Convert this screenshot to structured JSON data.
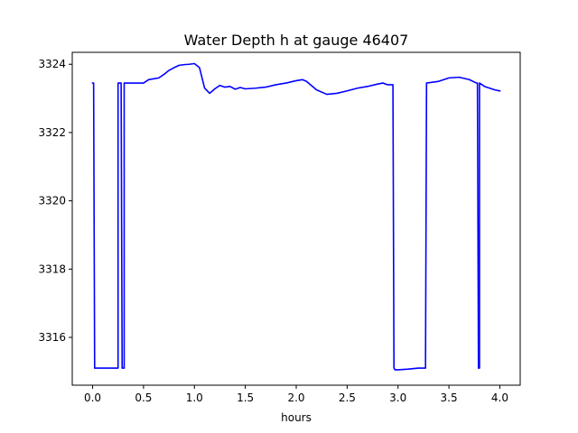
{
  "chart_data": {
    "type": "line",
    "title": "Water Depth h at gauge 46407",
    "xlabel": "hours",
    "ylabel": "",
    "xlim": [
      -0.2,
      4.2
    ],
    "ylim": [
      3314.6,
      3324.35
    ],
    "xticks": [
      0.0,
      0.5,
      1.0,
      1.5,
      2.0,
      2.5,
      3.0,
      3.5,
      4.0
    ],
    "xtick_labels": [
      "0.0",
      "0.5",
      "1.0",
      "1.5",
      "2.0",
      "2.5",
      "3.0",
      "3.5",
      "4.0"
    ],
    "yticks": [
      3316,
      3318,
      3320,
      3322,
      3324
    ],
    "ytick_labels": [
      "3316",
      "3318",
      "3320",
      "3322",
      "3324"
    ],
    "grid": false,
    "legend": "none",
    "series": [
      {
        "color": "#0000ff",
        "x": [
          0.0,
          0.01,
          0.02,
          0.02,
          0.25,
          0.25,
          0.28,
          0.29,
          0.31,
          0.31,
          0.32,
          0.32,
          0.35,
          0.4,
          0.5,
          0.55,
          0.65,
          0.7,
          0.75,
          0.8,
          0.85,
          0.9,
          0.95,
          1.0,
          1.05,
          1.1,
          1.15,
          1.2,
          1.25,
          1.3,
          1.35,
          1.4,
          1.45,
          1.5,
          1.6,
          1.7,
          1.8,
          1.9,
          2.0,
          2.06,
          2.1,
          2.2,
          2.3,
          2.4,
          2.5,
          2.6,
          2.7,
          2.8,
          2.85,
          2.9,
          2.95,
          2.96,
          2.97,
          3.0,
          3.1,
          3.2,
          3.27,
          3.28,
          3.4,
          3.5,
          3.6,
          3.7,
          3.77,
          3.78,
          3.79,
          3.79,
          3.8,
          3.8,
          3.85,
          3.9,
          3.95,
          4.0
        ],
        "y": [
          3323.45,
          3323.45,
          3315.1,
          3315.1,
          3315.1,
          3323.45,
          3323.45,
          3315.1,
          3315.1,
          3323.45,
          3323.45,
          3323.45,
          3323.45,
          3323.45,
          3323.45,
          3323.55,
          3323.6,
          3323.7,
          3323.82,
          3323.9,
          3323.97,
          3323.99,
          3324.0,
          3324.02,
          3323.9,
          3323.3,
          3323.15,
          3323.28,
          3323.38,
          3323.33,
          3323.35,
          3323.27,
          3323.32,
          3323.28,
          3323.3,
          3323.33,
          3323.4,
          3323.45,
          3323.52,
          3323.55,
          3323.5,
          3323.25,
          3323.12,
          3323.15,
          3323.22,
          3323.3,
          3323.35,
          3323.42,
          3323.45,
          3323.4,
          3323.4,
          3315.1,
          3315.05,
          3315.05,
          3315.07,
          3315.1,
          3315.1,
          3323.45,
          3323.5,
          3323.6,
          3323.62,
          3323.55,
          3323.45,
          3323.45,
          3315.15,
          3315.1,
          3315.1,
          3323.45,
          3323.35,
          3323.3,
          3323.25,
          3323.22
        ]
      }
    ]
  }
}
